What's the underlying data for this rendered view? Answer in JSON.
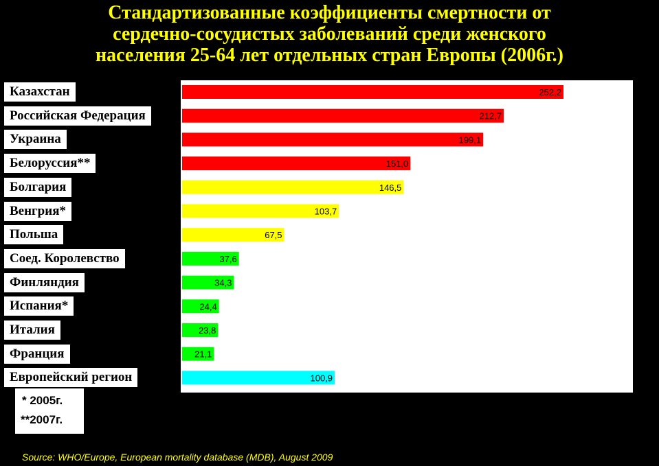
{
  "title_lines": [
    "Стандартизованные коэффициенты смертности от",
    "сердечно-сосудистых заболеваний среди  женского",
    "населения 25-64 лет отдельных стран Европы (2006г.)"
  ],
  "notes": [
    "* 2005г.",
    "**2007г."
  ],
  "source": "Source: WHO/Europe, European mortality database (MDB), August  2009",
  "colors": {
    "red": "#ff0000",
    "yellow": "#ffff00",
    "green": "#00ff00",
    "cyan": "#00ffff"
  },
  "chart_data": {
    "type": "bar",
    "orientation": "horizontal",
    "title": "Стандартизованные коэффициенты смертности от сердечно-сосудистых заболеваний среди  женского населения 25-64 лет отдельных стран Европы (2006г.)",
    "categories": [
      "Казахстан",
      "Российская Федерация",
      "Украина",
      "Белоруссия**",
      "Болгария",
      "Венгрия*",
      "Польша",
      "Соед. Королевство",
      "Финляндия",
      "Испания*",
      "Италия",
      "Франция",
      "Европейский регион"
    ],
    "values": [
      252.2,
      212.7,
      199.1,
      151.0,
      146.5,
      103.7,
      67.5,
      37.6,
      34.3,
      24.4,
      23.8,
      21.1,
      100.9
    ],
    "value_labels": [
      "252,2",
      "212,7",
      "199,1",
      "151,0",
      "146,5",
      "103,7",
      "67,5",
      "37,6",
      "34,3",
      "24,4",
      "23,8",
      "21,1",
      "100,9"
    ],
    "bar_colors": [
      "red",
      "red",
      "red",
      "red",
      "yellow",
      "yellow",
      "yellow",
      "green",
      "green",
      "green",
      "green",
      "green",
      "cyan"
    ],
    "xlim": [
      0,
      300
    ],
    "grid": false
  }
}
